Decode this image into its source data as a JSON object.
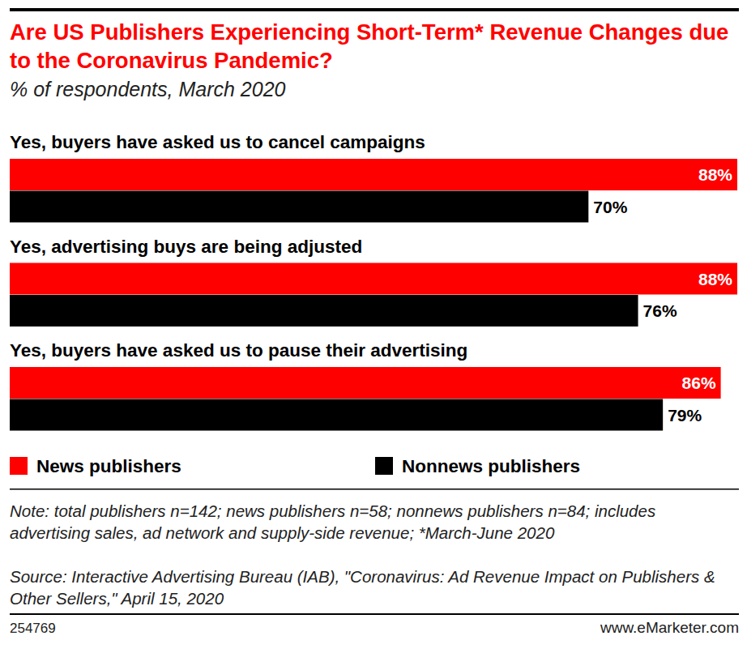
{
  "chart_data": {
    "type": "bar",
    "orientation": "horizontal",
    "title": "Are US Publishers Experiencing Short-Term* Revenue Changes due to the Coronavirus Pandemic?",
    "subtitle": "% of respondents, March 2020",
    "categories": [
      "Yes, buyers have asked us to cancel campaigns",
      "Yes, advertising buys are being adjusted",
      "Yes, buyers have asked us to pause their advertising"
    ],
    "series": [
      {
        "name": "News publishers",
        "color": "#ff0000",
        "values": [
          88,
          88,
          86
        ],
        "value_labels": [
          "88%",
          "88%",
          "86%"
        ]
      },
      {
        "name": "Nonnews publishers",
        "color": "#000000",
        "values": [
          70,
          76,
          79
        ],
        "value_labels": [
          "70%",
          "76%",
          "79%"
        ]
      }
    ],
    "xlim": [
      0,
      88
    ],
    "data_labels": true,
    "tick_labels": false,
    "grid": false,
    "legend": "bottom-left",
    "note": "Note: total publishers n=142; news publishers n=58; nonnews publishers n=84; includes advertising sales, ad network and supply-side revenue; *March-June 2020",
    "source": "Source: Interactive Advertising Bureau (IAB), \"Coronavirus: Ad Revenue Impact on Publishers & Other Sellers,\" April 15, 2020",
    "chart_id": "254769",
    "credit": "www.eMarketer.com"
  }
}
